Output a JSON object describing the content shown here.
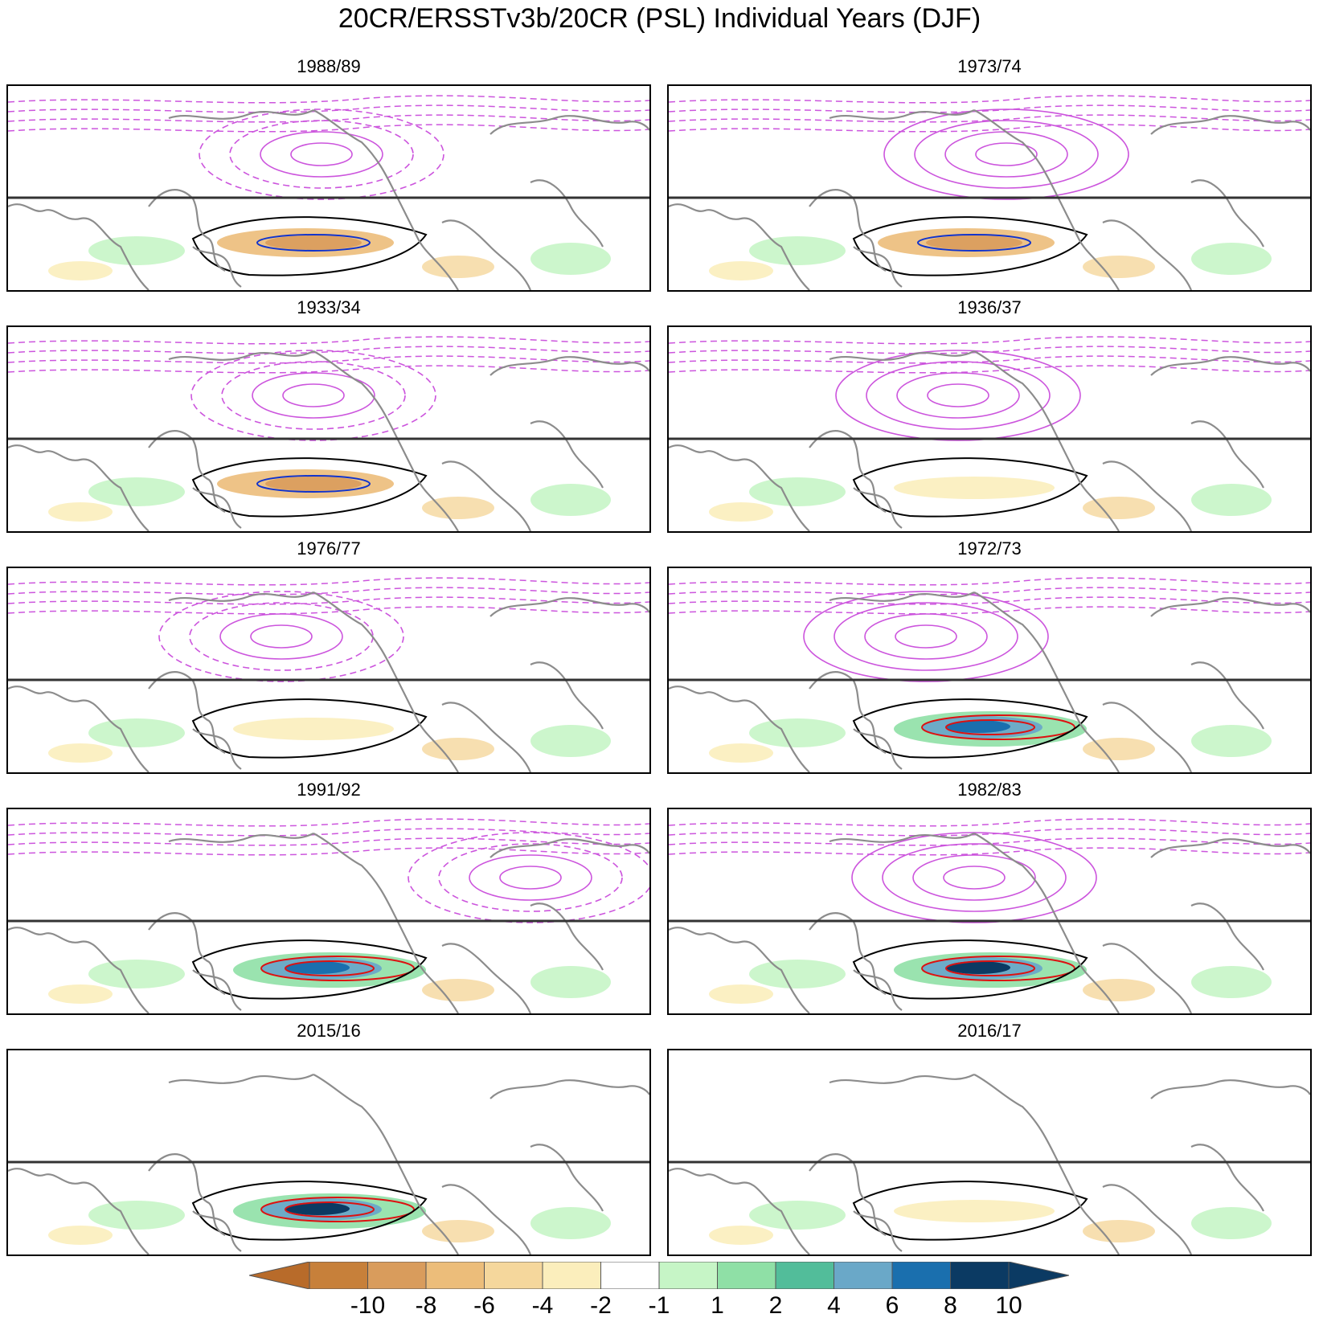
{
  "title": "20CR/ERSSTv3b/20CR (PSL) Individual Years (DJF)",
  "panels": [
    {
      "year": "1988/89"
    },
    {
      "year": "1973/74"
    },
    {
      "year": "1933/34"
    },
    {
      "year": "1936/37"
    },
    {
      "year": "1976/77"
    },
    {
      "year": "1972/73"
    },
    {
      "year": "1991/92"
    },
    {
      "year": "1982/83"
    },
    {
      "year": "2015/16"
    },
    {
      "year": "2016/17"
    }
  ],
  "colorbar": {
    "labels": [
      "-10",
      "-8",
      "-6",
      "-4",
      "-2",
      "-1",
      "1",
      "2",
      "4",
      "6",
      "8",
      "10"
    ],
    "colors": [
      "#c7803a",
      "#d99c5c",
      "#ecbd7a",
      "#f5d79c",
      "#fbeebc",
      "#ffffff",
      "#c6f5c6",
      "#8fe0a6",
      "#52bd9a",
      "#6aa8c8",
      "#1a6fae",
      "#0b3a63"
    ],
    "end_low": "#b86b2a",
    "end_high": "#0b3a63"
  },
  "colors": {
    "psl_contour": "#cc55dd",
    "coast": "#8c8c8c",
    "zero_contour": "#000000",
    "positive_contour": "#dd1111",
    "negative_contour": "#1133cc",
    "divider": "#333333"
  }
}
